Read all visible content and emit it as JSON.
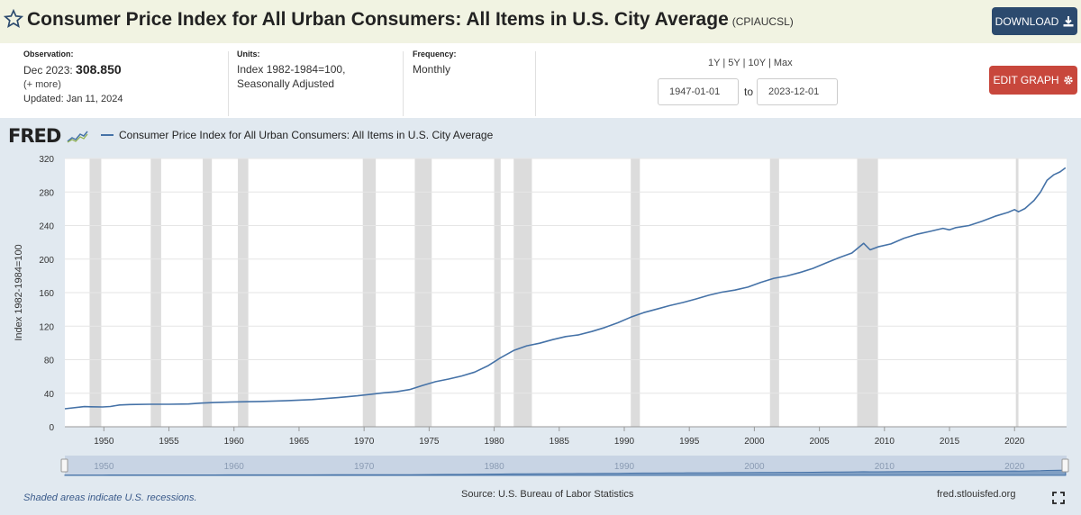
{
  "header": {
    "title": "Consumer Price Index for All Urban Consumers: All Items in U.S. City Average",
    "series_code": "(CPIAUCSL)",
    "download_label": "DOWNLOAD"
  },
  "meta": {
    "observation_label": "Observation:",
    "observation_date": "Dec 2023:",
    "observation_value": "308.850",
    "more_label": "(+ more)",
    "updated": "Updated: Jan 11, 2024",
    "units_label": "Units:",
    "units_line1": "Index 1982-1984=100,",
    "units_line2": "Seasonally Adjusted",
    "frequency_label": "Frequency:",
    "frequency_value": "Monthly"
  },
  "controls": {
    "range_1y": "1Y",
    "range_5y": "5Y",
    "range_10y": "10Y",
    "range_max": "Max",
    "separator": "|",
    "date_from": "1947-01-01",
    "to_label": "to",
    "date_to": "2023-12-01",
    "edit_label": "EDIT GRAPH"
  },
  "brand": {
    "logo": "FRED"
  },
  "footer": {
    "recession_note": "Shaded areas indicate U.S. recessions.",
    "source": "Source: U.S. Bureau of Labor Statistics",
    "site": "fred.stlouisfed.org"
  },
  "colors": {
    "line": "#4572a7",
    "recession": "#dcdcdc",
    "panel": "#e1e9f0",
    "download": "#2c4a6e",
    "edit": "#c8473c"
  },
  "icons": [
    "star-icon",
    "download-icon",
    "gear-icon",
    "fred-logo-graph-icon",
    "fullscreen-icon"
  ],
  "chart_data": {
    "type": "line",
    "title": "",
    "xlabel": "",
    "ylabel": "Index 1982-1984=100",
    "xlim": [
      1947.0,
      2024.0
    ],
    "ylim": [
      0,
      320
    ],
    "yticks": [
      0,
      40,
      80,
      120,
      160,
      200,
      240,
      280,
      320
    ],
    "xticks": [
      1950,
      1955,
      1960,
      1965,
      1970,
      1975,
      1980,
      1985,
      1990,
      1995,
      2000,
      2005,
      2010,
      2015,
      2020
    ],
    "grid": "horizontal",
    "legend": "top-left",
    "series": [
      {
        "name": "Consumer Price Index for All Urban Consumers: All Items in U.S. City Average",
        "x": [
          1947.0,
          1948.5,
          1949.0,
          1949.9,
          1950.5,
          1951.2,
          1952.0,
          1953.5,
          1955.0,
          1956.5,
          1957.5,
          1958.5,
          1960.0,
          1962.0,
          1964.0,
          1966.0,
          1968.0,
          1969.5,
          1970.5,
          1971.5,
          1972.5,
          1973.5,
          1974.5,
          1975.5,
          1976.5,
          1977.5,
          1978.5,
          1979.5,
          1980.5,
          1981.5,
          1982.5,
          1983.5,
          1984.5,
          1985.5,
          1986.5,
          1987.5,
          1988.5,
          1989.5,
          1990.5,
          1991.5,
          1992.5,
          1993.5,
          1994.5,
          1995.5,
          1996.5,
          1997.5,
          1998.5,
          1999.5,
          2000.5,
          2001.5,
          2002.5,
          2003.5,
          2004.5,
          2005.5,
          2006.5,
          2007.5,
          2008.4,
          2008.9,
          2009.5,
          2010.5,
          2011.5,
          2012.5,
          2013.5,
          2014.5,
          2015.0,
          2015.5,
          2016.5,
          2017.5,
          2018.5,
          2019.5,
          2020.0,
          2020.3,
          2020.8,
          2021.5,
          2022.0,
          2022.5,
          2023.0,
          2023.5,
          2023.92
        ],
        "y": [
          21.5,
          24.0,
          23.8,
          23.6,
          24.2,
          26.0,
          26.5,
          26.8,
          26.8,
          27.2,
          28.2,
          28.9,
          29.6,
          30.2,
          31.0,
          32.4,
          34.8,
          36.9,
          38.8,
          40.5,
          41.8,
          44.4,
          49.3,
          53.8,
          56.9,
          60.6,
          65.2,
          72.6,
          82.4,
          90.9,
          96.5,
          99.6,
          103.9,
          107.6,
          109.6,
          113.6,
          118.3,
          124.0,
          130.7,
          136.2,
          140.3,
          144.5,
          148.2,
          152.4,
          156.9,
          160.5,
          163.0,
          166.6,
          172.2,
          177.1,
          179.9,
          184.0,
          188.9,
          195.3,
          201.6,
          207.3,
          218.8,
          211.0,
          214.6,
          218.1,
          224.9,
          229.6,
          233.0,
          236.7,
          234.8,
          237.5,
          240.0,
          245.1,
          251.1,
          255.7,
          259.0,
          256.4,
          260.3,
          270.0,
          280.0,
          294.0,
          300.5,
          304.0,
          308.85
        ]
      }
    ],
    "recessions": [
      [
        1948.9,
        1949.8
      ],
      [
        1953.6,
        1954.4
      ],
      [
        1957.6,
        1958.3
      ],
      [
        1960.3,
        1961.1
      ],
      [
        1969.9,
        1970.9
      ],
      [
        1973.9,
        1975.2
      ],
      [
        1980.0,
        1980.5
      ],
      [
        1981.5,
        1982.9
      ],
      [
        1990.5,
        1991.2
      ],
      [
        2001.2,
        2001.9
      ],
      [
        2007.9,
        2009.5
      ],
      [
        2020.1,
        2020.3
      ]
    ],
    "navigator_ticks": [
      1950,
      1960,
      1970,
      1980,
      1990,
      2000,
      2010,
      2020
    ]
  }
}
